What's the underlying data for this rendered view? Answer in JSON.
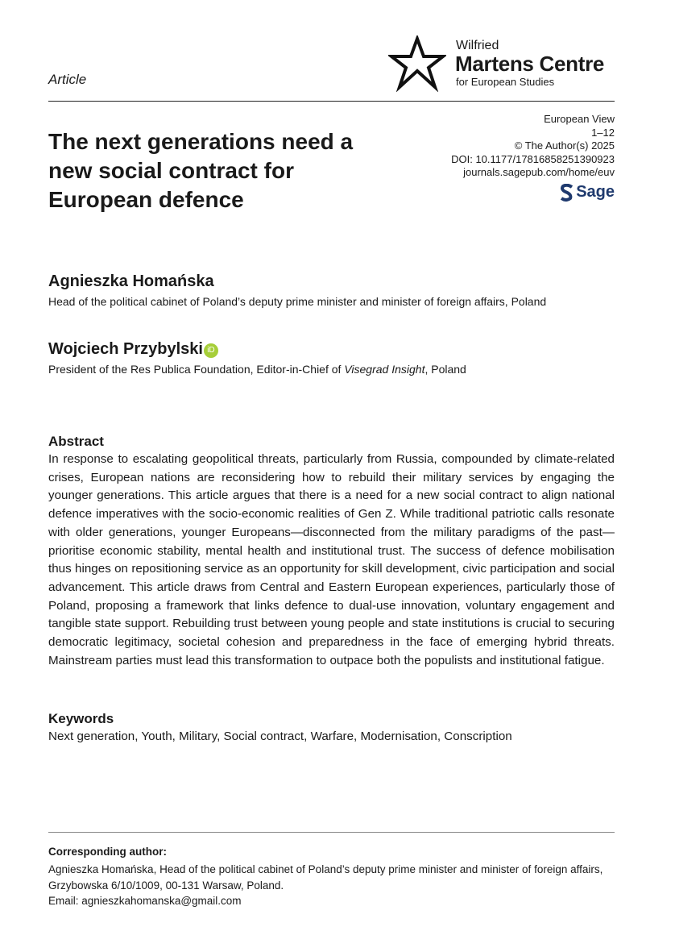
{
  "article_type": "Article",
  "logo": {
    "line1": "Wilfried",
    "line2": "Martens Centre",
    "line3": "for European Studies"
  },
  "meta": {
    "journal": "European View",
    "pages": "1–12",
    "copyright": "© The Author(s) 2025",
    "doi": "DOI: 10.1177/17816858251390923",
    "url": "journals.sagepub.com/home/euv",
    "publisher": "Sage"
  },
  "title": "The next generations need a new social contract for European defence",
  "authors": [
    {
      "name": "Agnieszka Homańska",
      "affiliation": "Head of the political cabinet of Poland’s deputy prime minister and minister of foreign affairs, Poland"
    },
    {
      "name": "Wojciech Przybylski",
      "affiliation_before": "President of the Res Publica Foundation, Editor-in-Chief of ",
      "affiliation_italic": "Visegrad Insight",
      "affiliation_after": ", Poland",
      "orcid": "iD"
    }
  ],
  "abstract": {
    "heading": "Abstract",
    "text": "In response to escalating geopolitical threats, particularly from Russia, compounded by climate-related crises, European nations are reconsidering how to rebuild their military services by engaging the younger generations. This article argues that there is a need for a new social contract to align national defence imperatives with the socio-economic realities of Gen Z. While traditional patriotic calls resonate with older generations, younger Europeans—disconnected from the military paradigms of the past—prioritise economic stability, mental health and institutional trust. The success of defence mobilisation thus hinges on repositioning service as an opportunity for skill development, civic participation and social advancement. This article draws from Central and Eastern European experiences, particularly those of Poland, proposing a framework that links defence to dual-use innovation, voluntary engagement and tangible state support. Rebuilding trust between young people and state institutions is crucial to securing democratic legitimacy, societal cohesion and preparedness in the face of emerging hybrid threats. Mainstream parties must lead this transformation to outpace both the populists and institutional fatigue."
  },
  "keywords": {
    "heading": "Keywords",
    "text": "Next generation, Youth, Military, Social contract, Warfare, Modernisation, Conscription"
  },
  "corresponding": {
    "label": "Corresponding author:",
    "address": "Agnieszka Homańska, Head of the political cabinet of Poland’s deputy prime minister and minister of foreign affairs, Grzybowska 6/10/1009, 00-131 Warsaw, Poland.",
    "email": "Email: agnieszkahomanska@gmail.com"
  },
  "colors": {
    "sage": "#1f3a6e",
    "orcid": "#a6ce39"
  }
}
